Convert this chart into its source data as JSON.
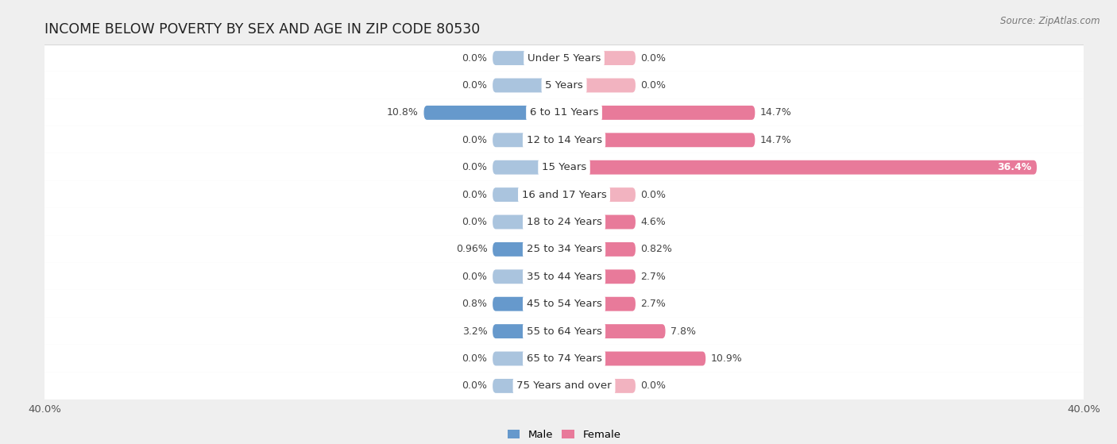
{
  "title": "INCOME BELOW POVERTY BY SEX AND AGE IN ZIP CODE 80530",
  "source": "Source: ZipAtlas.com",
  "categories": [
    "Under 5 Years",
    "5 Years",
    "6 to 11 Years",
    "12 to 14 Years",
    "15 Years",
    "16 and 17 Years",
    "18 to 24 Years",
    "25 to 34 Years",
    "35 to 44 Years",
    "45 to 54 Years",
    "55 to 64 Years",
    "65 to 74 Years",
    "75 Years and over"
  ],
  "male_values": [
    0.0,
    0.0,
    10.8,
    0.0,
    0.0,
    0.0,
    0.0,
    0.96,
    0.0,
    0.8,
    3.2,
    0.0,
    0.0
  ],
  "female_values": [
    0.0,
    0.0,
    14.7,
    14.7,
    36.4,
    0.0,
    4.6,
    0.82,
    2.7,
    2.7,
    7.8,
    10.9,
    0.0
  ],
  "male_color_light": "#aac4de",
  "male_color_dark": "#6699cc",
  "female_color_light": "#f2b3c0",
  "female_color_dark": "#e8607a",
  "female_color_mid": "#e87a9a",
  "bar_height": 0.52,
  "label_stub": 5.5,
  "xlim": 40.0,
  "background_color": "#efefef",
  "row_bg_color": "#ffffff",
  "row_sep_color": "#d8d8d8",
  "title_fontsize": 12.5,
  "label_fontsize": 9.5,
  "value_fontsize": 9.0,
  "axis_fontsize": 9.5,
  "source_fontsize": 8.5
}
